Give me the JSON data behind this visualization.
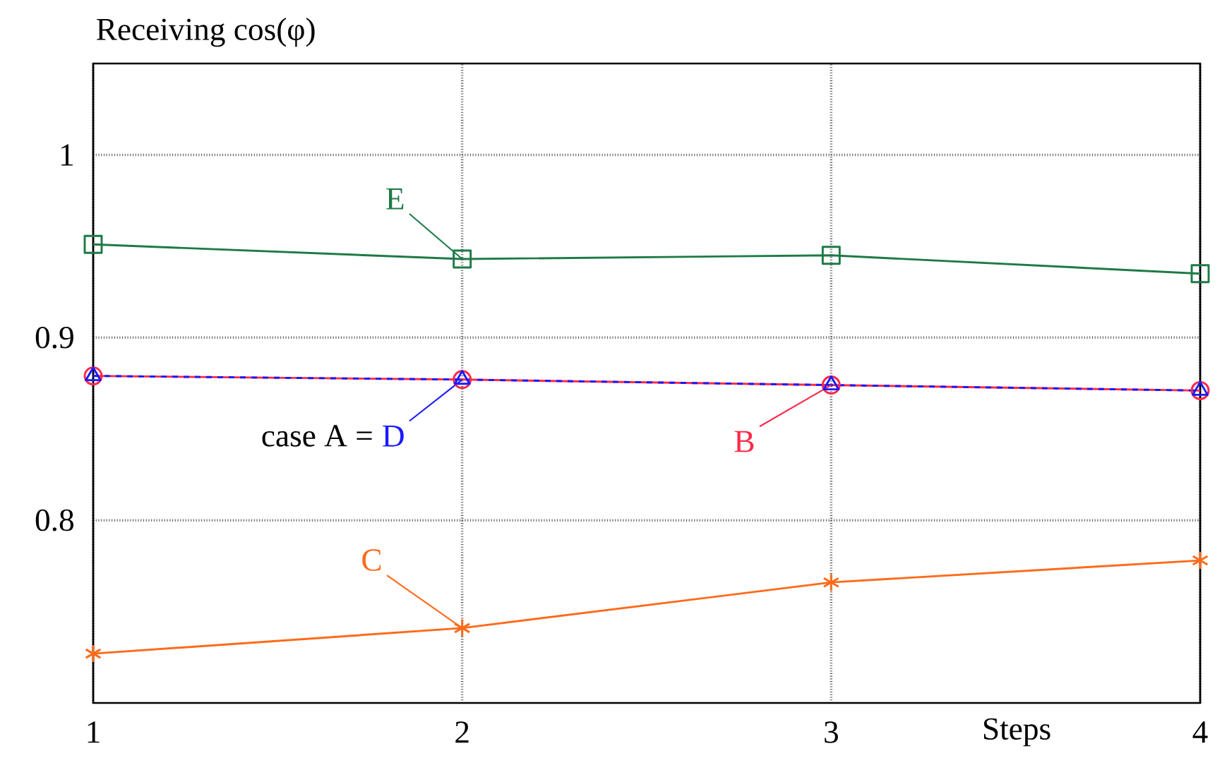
{
  "chart_data": {
    "type": "line",
    "ylabel": "Receiving cos(φ)",
    "xlabel": "Steps",
    "x": [
      1,
      2,
      3,
      4
    ],
    "xlim": [
      1,
      4
    ],
    "ylim": [
      0.7,
      1.05
    ],
    "xticks": [
      1,
      2,
      3,
      4
    ],
    "yticks": [
      0.8,
      0.9,
      1
    ],
    "grid": true,
    "annotations": [
      {
        "text": "case A =",
        "x": 2,
        "y": 0.877
      }
    ],
    "series": [
      {
        "name": "E",
        "color": "#1e7a46",
        "marker": "square",
        "line_style": "solid",
        "values": [
          0.951,
          0.943,
          0.945,
          0.935
        ]
      },
      {
        "name": "B",
        "color": "#ff2a4a",
        "marker": "circle",
        "line_style": "solid",
        "values": [
          0.879,
          0.877,
          0.874,
          0.871
        ]
      },
      {
        "name": "D",
        "color": "#1a1aff",
        "marker": "triangle",
        "line_style": "dashed",
        "values": [
          0.879,
          0.877,
          0.874,
          0.871
        ]
      },
      {
        "name": "C",
        "color": "#ff6a1a",
        "marker": "cross",
        "line_style": "solid",
        "values": [
          0.727,
          0.741,
          0.766,
          0.778
        ]
      }
    ]
  }
}
